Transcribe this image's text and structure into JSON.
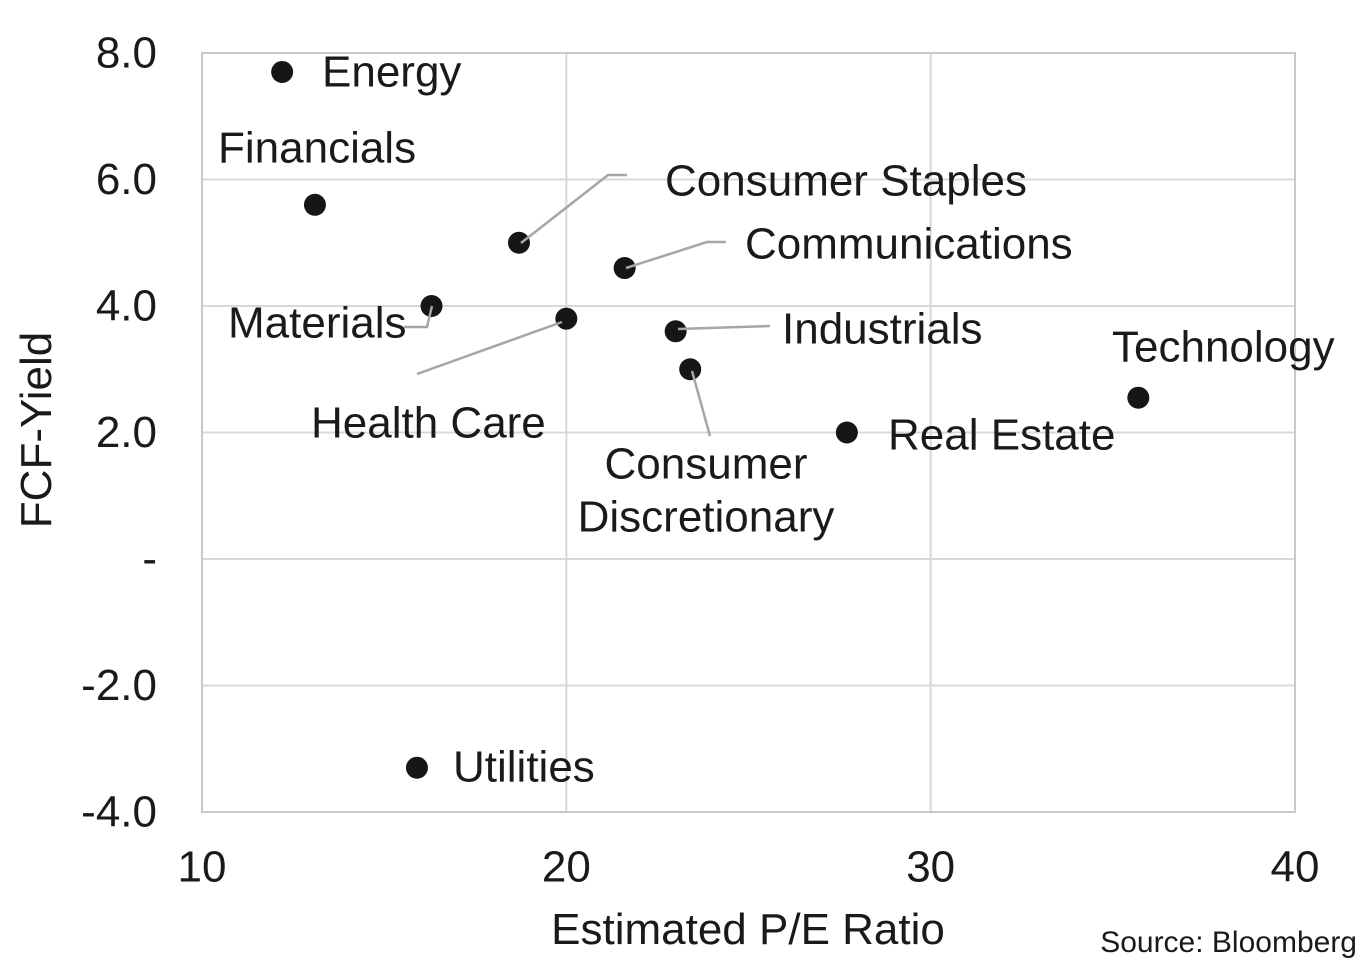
{
  "chart_data": {
    "type": "scatter",
    "xlabel": "Estimated P/E Ratio",
    "ylabel": "FCF-Yield",
    "source": "Source: Bloomberg",
    "xlim": [
      10,
      40
    ],
    "ylim": [
      -4,
      8
    ],
    "grid": true,
    "legend": "none",
    "x_ticks": [
      {
        "value": 10,
        "label": "10"
      },
      {
        "value": 20,
        "label": "20"
      },
      {
        "value": 30,
        "label": "30"
      },
      {
        "value": 40,
        "label": "40"
      }
    ],
    "y_ticks": [
      {
        "value": 8,
        "label": "8.0"
      },
      {
        "value": 6,
        "label": "6.0"
      },
      {
        "value": 4,
        "label": "4.0"
      },
      {
        "value": 2,
        "label": "2.0"
      },
      {
        "value": 0,
        "label": "-"
      },
      {
        "value": -2,
        "label": "-2.0"
      },
      {
        "value": -4,
        "label": "-4.0"
      }
    ],
    "points": [
      {
        "label": "Energy",
        "x": 12.2,
        "y": 7.7
      },
      {
        "label": "Financials",
        "x": 13.1,
        "y": 5.6
      },
      {
        "label": "Consumer Staples",
        "x": 18.7,
        "y": 5.0
      },
      {
        "label": "Communications",
        "x": 21.6,
        "y": 4.6
      },
      {
        "label": "Materials",
        "x": 16.3,
        "y": 4.0
      },
      {
        "label": "Health Care",
        "x": 20.0,
        "y": 3.8
      },
      {
        "label": "Industrials",
        "x": 23.0,
        "y": 3.6
      },
      {
        "label": "Consumer Discretionary",
        "x": 23.4,
        "y": 3.0
      },
      {
        "label": "Real Estate",
        "x": 27.7,
        "y": 2.0
      },
      {
        "label": "Technology",
        "x": 35.7,
        "y": 2.55
      },
      {
        "label": "Utilities",
        "x": 15.9,
        "y": -3.3
      }
    ],
    "colors": {
      "point": "#161616",
      "grid": "#d8d8d8",
      "border": "#c9c9c9",
      "leader": "#a6a6a6",
      "text": "#1a1a1a"
    }
  }
}
